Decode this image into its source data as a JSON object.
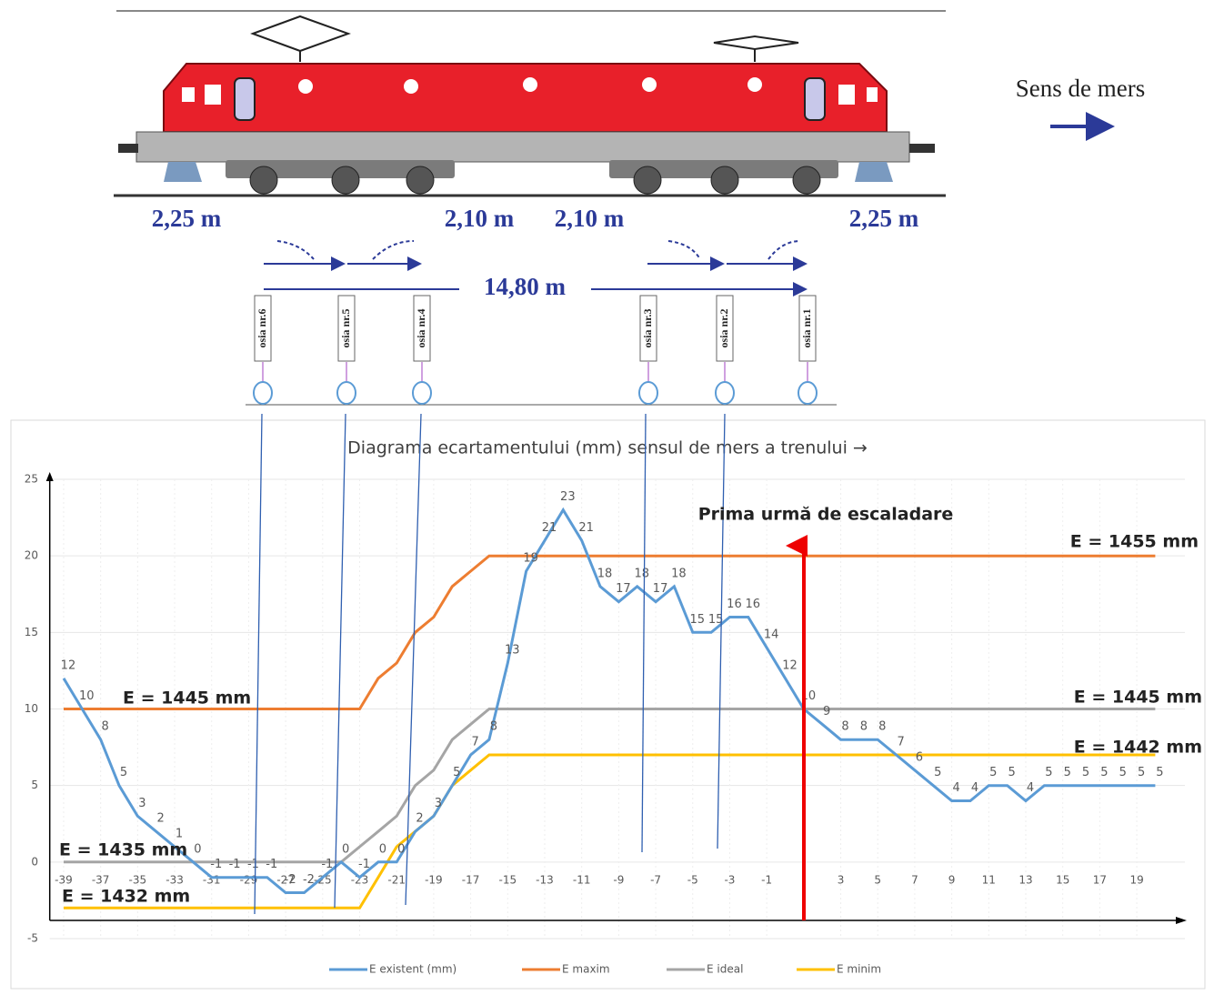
{
  "diagram": {
    "direction": "Sens de mers",
    "dims": [
      "2,25 m",
      "2,10 m",
      "2,10 m",
      "2,25 m",
      "14,80 m"
    ],
    "axles": [
      "osia nr.6",
      "osia nr.5",
      "osia nr.4",
      "osia nr.3",
      "osia nr.2",
      "osia nr.1"
    ]
  },
  "chart_data": {
    "type": "line",
    "title": "Diagrama ecartamentului (mm)  sensul de mers a trenului →",
    "x": [
      -39,
      -38,
      -37,
      -36,
      -35,
      -34,
      -33,
      -32,
      -31,
      -30,
      -29,
      -28,
      -27,
      -26,
      -25,
      -24,
      -23,
      -22,
      -21,
      -20,
      -19,
      -18,
      -17,
      -16,
      -15,
      -14,
      -13,
      -12,
      -11,
      -10,
      -9,
      -8,
      -7,
      -6,
      -5,
      -4,
      -3,
      -2,
      -1,
      0,
      1,
      2,
      3,
      4,
      5,
      6,
      7,
      8,
      9,
      10,
      11,
      12,
      13,
      14,
      15,
      16,
      17,
      18,
      19,
      20
    ],
    "series": [
      {
        "name": "E existent (mm)",
        "color": "#5b9bd5",
        "values": [
          12,
          10,
          8,
          5,
          3,
          2,
          1,
          0,
          -1,
          -1,
          -1,
          -1,
          -2,
          -2,
          -1,
          0,
          -1,
          0,
          0,
          2,
          3,
          5,
          7,
          8,
          13,
          19,
          21,
          23,
          21,
          18,
          17,
          18,
          17,
          18,
          15,
          15,
          16,
          16,
          14,
          12,
          10,
          9,
          8,
          8,
          8,
          7,
          6,
          5,
          4,
          4,
          5,
          5,
          4,
          5,
          5,
          5,
          5,
          5,
          5,
          5
        ]
      },
      {
        "name": "E maxim",
        "color": "#ed7d31",
        "values": [
          10,
          10,
          10,
          10,
          10,
          10,
          10,
          10,
          10,
          10,
          10,
          10,
          10,
          10,
          10,
          10,
          10,
          12,
          13,
          15,
          16,
          18,
          19,
          20,
          20,
          20,
          20,
          20,
          20,
          20,
          20,
          20,
          20,
          20,
          20,
          20,
          20,
          20,
          20,
          20,
          20,
          20,
          20,
          20,
          20,
          20,
          20,
          20,
          20,
          20,
          20,
          20,
          20,
          20,
          20,
          20,
          20,
          20,
          20,
          20
        ]
      },
      {
        "name": "E ideal",
        "color": "#a5a5a5",
        "values": [
          0,
          0,
          0,
          0,
          0,
          0,
          0,
          0,
          0,
          0,
          0,
          0,
          0,
          0,
          0,
          0,
          1,
          2,
          3,
          5,
          6,
          8,
          9,
          10,
          10,
          10,
          10,
          10,
          10,
          10,
          10,
          10,
          10,
          10,
          10,
          10,
          10,
          10,
          10,
          10,
          10,
          10,
          10,
          10,
          10,
          10,
          10,
          10,
          10,
          10,
          10,
          10,
          10,
          10,
          10,
          10,
          10,
          10,
          10,
          10
        ]
      },
      {
        "name": "E minim",
        "color": "#ffc000",
        "values": [
          -3,
          -3,
          -3,
          -3,
          -3,
          -3,
          -3,
          -3,
          -3,
          -3,
          -3,
          -3,
          -3,
          -3,
          -3,
          -3,
          -3,
          -1,
          1,
          2,
          3,
          5,
          6,
          7,
          7,
          7,
          7,
          7,
          7,
          7,
          7,
          7,
          7,
          7,
          7,
          7,
          7,
          7,
          7,
          7,
          7,
          7,
          7,
          7,
          7,
          7,
          7,
          7,
          7,
          7,
          7,
          7,
          7,
          7,
          7,
          7,
          7,
          7,
          7,
          7
        ]
      }
    ],
    "xlim": [
      -39.75,
      21.6
    ],
    "xticks": [
      -39,
      -37,
      -35,
      -33,
      -31,
      -29,
      -27,
      -25,
      -23,
      -21,
      -19,
      -17,
      -15,
      -13,
      -11,
      -9,
      -7,
      -5,
      -3,
      -1,
      3,
      5,
      7,
      9,
      11,
      13,
      15,
      17,
      19
    ],
    "ylim": [
      -5,
      25
    ],
    "yticks": [
      -5,
      0,
      5,
      10,
      15,
      20,
      25
    ],
    "grid": true,
    "data_labels": true,
    "annotations": [
      "E = 1445 mm",
      "E = 1435 mm",
      "E = 1432 mm",
      "E = 1455 mm",
      "E = 1445 mm",
      "E = 1442 mm",
      "Prima urmă de escaladare"
    ]
  }
}
